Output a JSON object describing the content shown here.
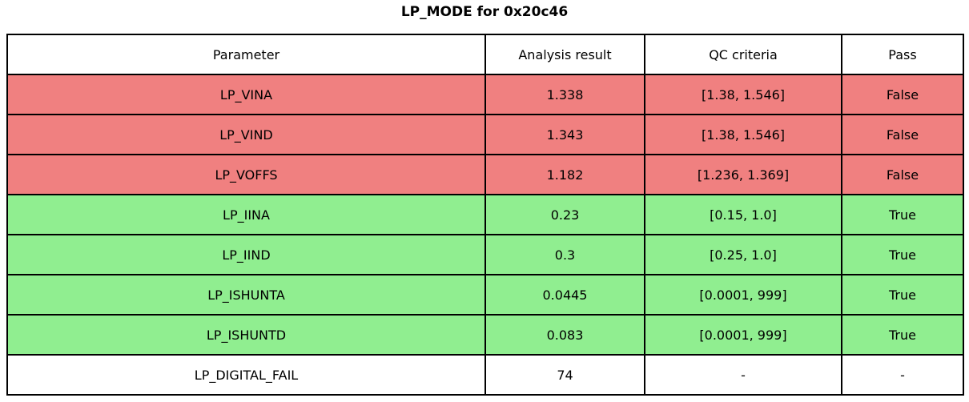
{
  "title": "LP_MODE for 0x20c46",
  "colors": {
    "fail_row": "#f08080",
    "pass_row": "#90ee90",
    "neutral_row": "#ffffff",
    "border": "#000000"
  },
  "table": {
    "columns": [
      "Parameter",
      "Analysis result",
      "QC criteria",
      "Pass"
    ],
    "rows": [
      {
        "parameter": "LP_VINA",
        "analysis_result": "1.338",
        "qc_criteria": "[1.38, 1.546]",
        "pass": "False",
        "status": "fail"
      },
      {
        "parameter": "LP_VIND",
        "analysis_result": "1.343",
        "qc_criteria": "[1.38, 1.546]",
        "pass": "False",
        "status": "fail"
      },
      {
        "parameter": "LP_VOFFS",
        "analysis_result": "1.182",
        "qc_criteria": "[1.236, 1.369]",
        "pass": "False",
        "status": "fail"
      },
      {
        "parameter": "LP_IINA",
        "analysis_result": "0.23",
        "qc_criteria": "[0.15, 1.0]",
        "pass": "True",
        "status": "pass"
      },
      {
        "parameter": "LP_IIND",
        "analysis_result": "0.3",
        "qc_criteria": "[0.25, 1.0]",
        "pass": "True",
        "status": "pass"
      },
      {
        "parameter": "LP_ISHUNTA",
        "analysis_result": "0.0445",
        "qc_criteria": "[0.0001, 999]",
        "pass": "True",
        "status": "pass"
      },
      {
        "parameter": "LP_ISHUNTD",
        "analysis_result": "0.083",
        "qc_criteria": "[0.0001, 999]",
        "pass": "True",
        "status": "pass"
      },
      {
        "parameter": "LP_DIGITAL_FAIL",
        "analysis_result": "74",
        "qc_criteria": "-",
        "pass": "-",
        "status": "neutral"
      }
    ]
  },
  "chart_data": {
    "type": "table",
    "title": "LP_MODE for 0x20c46",
    "columns": [
      "Parameter",
      "Analysis result",
      "QC criteria",
      "Pass"
    ],
    "cells": [
      [
        "LP_VINA",
        "1.338",
        "[1.38, 1.546]",
        "False"
      ],
      [
        "LP_VIND",
        "1.343",
        "[1.38, 1.546]",
        "False"
      ],
      [
        "LP_VOFFS",
        "1.182",
        "[1.236, 1.369]",
        "False"
      ],
      [
        "LP_IINA",
        "0.23",
        "[0.15, 1.0]",
        "True"
      ],
      [
        "LP_IIND",
        "0.3",
        "[0.25, 1.0]",
        "True"
      ],
      [
        "LP_ISHUNTA",
        "0.0445",
        "[0.0001, 999]",
        "True"
      ],
      [
        "LP_ISHUNTD",
        "0.083",
        "[0.0001, 999]",
        "True"
      ],
      [
        "LP_DIGITAL_FAIL",
        "74",
        "-",
        "-"
      ]
    ]
  }
}
